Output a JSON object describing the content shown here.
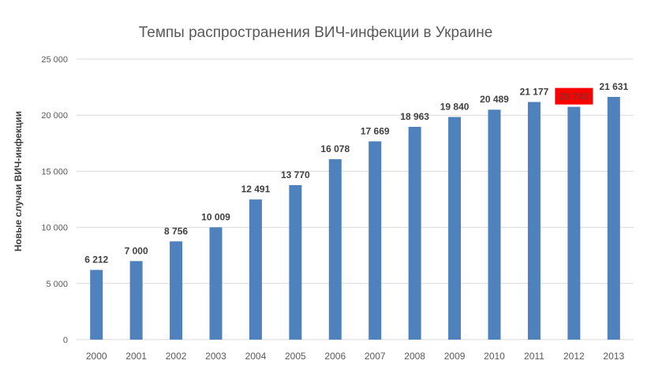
{
  "chart_data": {
    "type": "bar",
    "title": "Темпы  распространения  ВИЧ-инфекции  в Украине",
    "xlabel": "",
    "ylabel": "Новые случаи ВИЧ-инфекции",
    "categories": [
      "2000",
      "2001",
      "2002",
      "2003",
      "2004",
      "2005",
      "2006",
      "2007",
      "2008",
      "2009",
      "2010",
      "2011",
      "2012",
      "2013"
    ],
    "values": [
      6212,
      7000,
      8756,
      10009,
      12491,
      13770,
      16078,
      17669,
      18963,
      19840,
      20489,
      21177,
      20743,
      21631
    ],
    "data_labels": [
      "6 212",
      "7 000",
      "8 756",
      "10 009",
      "12 491",
      "13 770",
      "16 078",
      "17 669",
      "18 963",
      "19 840",
      "20 489",
      "21 177",
      "20 743",
      "21 631"
    ],
    "highlighted_label": "2012",
    "ylim": [
      0,
      25000
    ],
    "yticks": [
      0,
      5000,
      10000,
      15000,
      20000,
      25000
    ],
    "ytick_labels": [
      "0",
      "5 000",
      "10 000",
      "15 000",
      "20 000",
      "25 000"
    ],
    "grid": true,
    "legend": "none",
    "colors": {
      "bar": "#4f81bd",
      "highlight": "#ff0000",
      "grid": "#d9d9d9"
    }
  }
}
